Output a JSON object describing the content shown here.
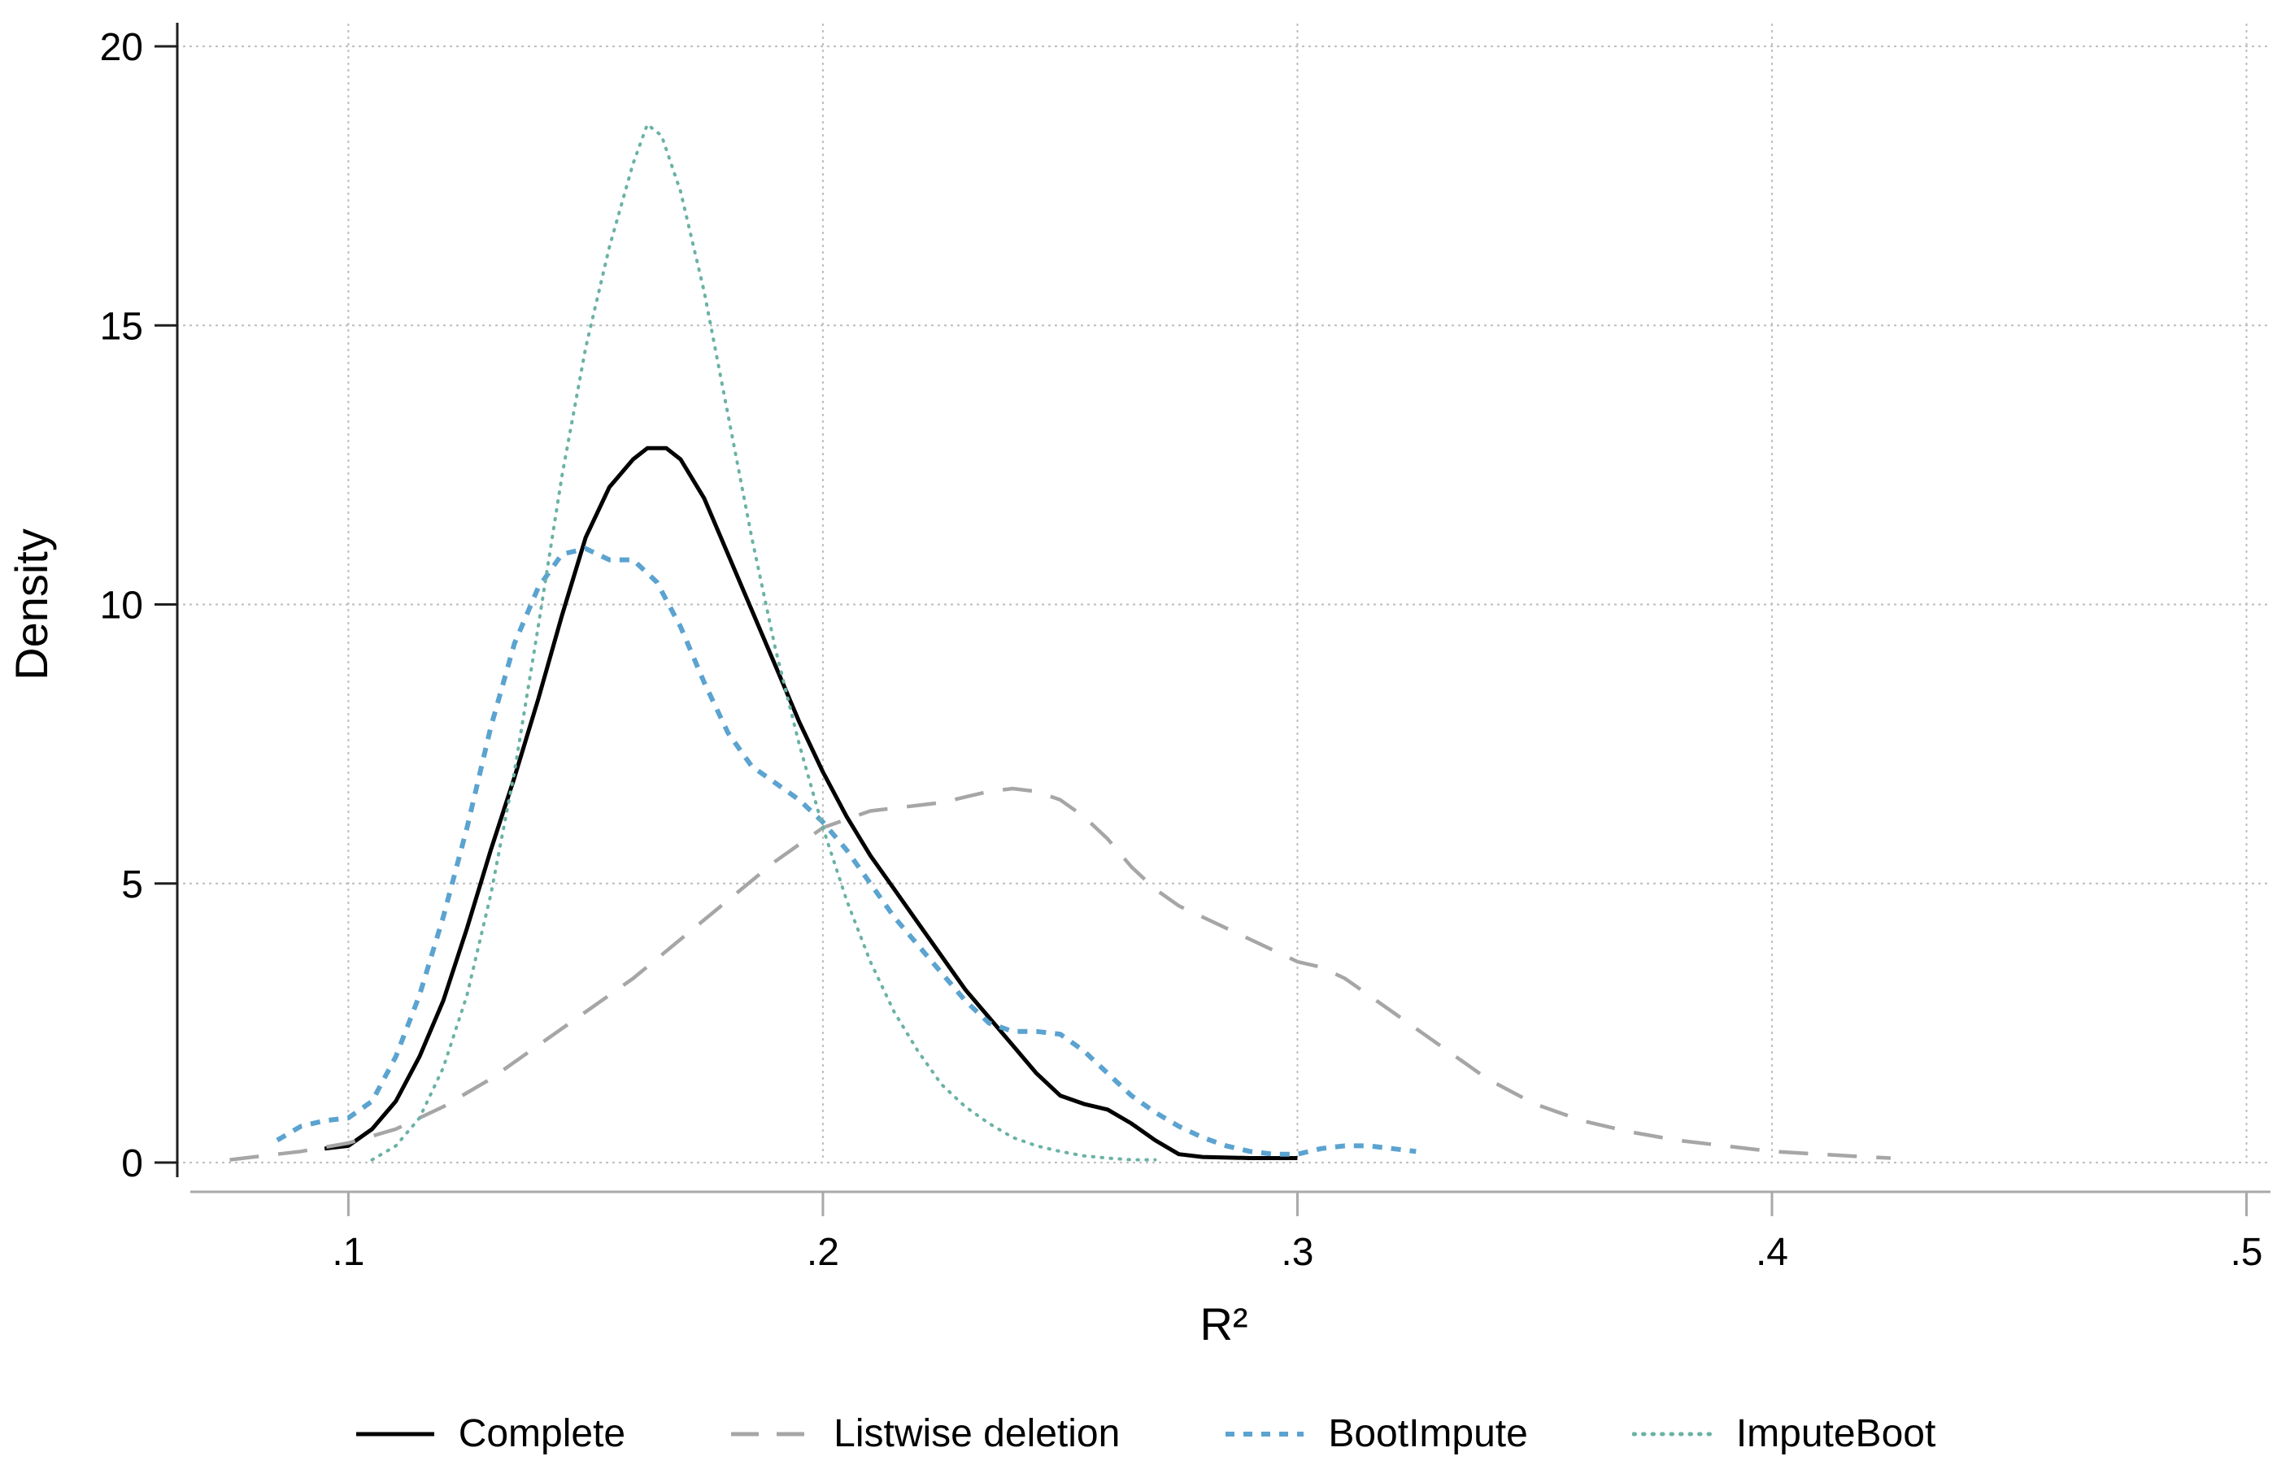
{
  "chart_data": {
    "type": "line",
    "title": "",
    "subtitle": "",
    "xlabel": "R²",
    "ylabel": "Density",
    "xlim": [
      0.066,
      0.503
    ],
    "ylim": [
      0,
      20
    ],
    "grid": "dotted-both",
    "legend_position": "bottom",
    "frame": {
      "background": "#ffffff",
      "grid_color": "#bdbdbd",
      "y_axis_color": "#1f1f1f",
      "x_axis_color": "#a9a9a9",
      "text_color": "#000000"
    },
    "x_ticks": [
      {
        "v": 0.1,
        "label": ".1"
      },
      {
        "v": 0.2,
        "label": ".2"
      },
      {
        "v": 0.3,
        "label": ".3"
      },
      {
        "v": 0.4,
        "label": ".4"
      },
      {
        "v": 0.5,
        "label": ".5"
      }
    ],
    "y_ticks": [
      {
        "v": 0,
        "label": "0"
      },
      {
        "v": 5,
        "label": "5"
      },
      {
        "v": 10,
        "label": "10"
      },
      {
        "v": 15,
        "label": "15"
      },
      {
        "v": 20,
        "label": "20"
      }
    ],
    "series": [
      {
        "name": "Complete",
        "color": "#000000",
        "style": "solid",
        "width": 5,
        "dash": "",
        "legend_dash": "",
        "cap": "butt",
        "points": [
          [
            0.095,
            0.25
          ],
          [
            0.1,
            0.3
          ],
          [
            0.105,
            0.6
          ],
          [
            0.11,
            1.1
          ],
          [
            0.115,
            1.9
          ],
          [
            0.12,
            2.9
          ],
          [
            0.125,
            4.2
          ],
          [
            0.13,
            5.6
          ],
          [
            0.135,
            6.9
          ],
          [
            0.14,
            8.3
          ],
          [
            0.145,
            9.8
          ],
          [
            0.15,
            11.2
          ],
          [
            0.155,
            12.1
          ],
          [
            0.16,
            12.6
          ],
          [
            0.163,
            12.8
          ],
          [
            0.167,
            12.8
          ],
          [
            0.17,
            12.6
          ],
          [
            0.175,
            11.9
          ],
          [
            0.18,
            10.9
          ],
          [
            0.185,
            9.9
          ],
          [
            0.19,
            8.9
          ],
          [
            0.195,
            7.9
          ],
          [
            0.2,
            7.0
          ],
          [
            0.205,
            6.2
          ],
          [
            0.21,
            5.5
          ],
          [
            0.215,
            4.9
          ],
          [
            0.22,
            4.3
          ],
          [
            0.225,
            3.7
          ],
          [
            0.23,
            3.1
          ],
          [
            0.235,
            2.6
          ],
          [
            0.24,
            2.1
          ],
          [
            0.245,
            1.6
          ],
          [
            0.25,
            1.2
          ],
          [
            0.255,
            1.05
          ],
          [
            0.26,
            0.95
          ],
          [
            0.265,
            0.7
          ],
          [
            0.27,
            0.4
          ],
          [
            0.275,
            0.15
          ],
          [
            0.28,
            0.1
          ],
          [
            0.29,
            0.08
          ],
          [
            0.3,
            0.08
          ]
        ]
      },
      {
        "name": "Listwise deletion",
        "color": "#a6a6a6",
        "style": "long-dash",
        "width": 4.5,
        "dash": "36 24",
        "legend_dash": "34 22",
        "cap": "butt",
        "points": [
          [
            0.075,
            0.05
          ],
          [
            0.08,
            0.1
          ],
          [
            0.09,
            0.2
          ],
          [
            0.1,
            0.35
          ],
          [
            0.11,
            0.6
          ],
          [
            0.12,
            1.0
          ],
          [
            0.13,
            1.5
          ],
          [
            0.14,
            2.1
          ],
          [
            0.15,
            2.7
          ],
          [
            0.16,
            3.3
          ],
          [
            0.17,
            4.0
          ],
          [
            0.18,
            4.7
          ],
          [
            0.19,
            5.4
          ],
          [
            0.2,
            6.0
          ],
          [
            0.21,
            6.3
          ],
          [
            0.22,
            6.4
          ],
          [
            0.225,
            6.45
          ],
          [
            0.23,
            6.55
          ],
          [
            0.235,
            6.65
          ],
          [
            0.24,
            6.7
          ],
          [
            0.245,
            6.65
          ],
          [
            0.25,
            6.5
          ],
          [
            0.255,
            6.2
          ],
          [
            0.26,
            5.8
          ],
          [
            0.265,
            5.3
          ],
          [
            0.27,
            4.9
          ],
          [
            0.275,
            4.6
          ],
          [
            0.28,
            4.4
          ],
          [
            0.285,
            4.2
          ],
          [
            0.29,
            4.0
          ],
          [
            0.295,
            3.8
          ],
          [
            0.3,
            3.6
          ],
          [
            0.305,
            3.5
          ],
          [
            0.31,
            3.3
          ],
          [
            0.315,
            3.0
          ],
          [
            0.32,
            2.7
          ],
          [
            0.325,
            2.4
          ],
          [
            0.33,
            2.1
          ],
          [
            0.335,
            1.8
          ],
          [
            0.34,
            1.5
          ],
          [
            0.35,
            1.05
          ],
          [
            0.36,
            0.75
          ],
          [
            0.37,
            0.55
          ],
          [
            0.38,
            0.4
          ],
          [
            0.39,
            0.3
          ],
          [
            0.4,
            0.2
          ],
          [
            0.41,
            0.15
          ],
          [
            0.42,
            0.1
          ],
          [
            0.425,
            0.08
          ]
        ]
      },
      {
        "name": "BootImpute",
        "color": "#5ba3d0",
        "style": "short-dash",
        "width": 6,
        "dash": "12 11",
        "legend_dash": "11 11",
        "cap": "butt",
        "points": [
          [
            0.085,
            0.4
          ],
          [
            0.09,
            0.65
          ],
          [
            0.095,
            0.75
          ],
          [
            0.1,
            0.8
          ],
          [
            0.105,
            1.1
          ],
          [
            0.11,
            1.9
          ],
          [
            0.115,
            3.0
          ],
          [
            0.12,
            4.4
          ],
          [
            0.125,
            6.0
          ],
          [
            0.13,
            7.8
          ],
          [
            0.135,
            9.3
          ],
          [
            0.14,
            10.3
          ],
          [
            0.145,
            10.9
          ],
          [
            0.15,
            11.0
          ],
          [
            0.155,
            10.8
          ],
          [
            0.16,
            10.8
          ],
          [
            0.165,
            10.4
          ],
          [
            0.17,
            9.6
          ],
          [
            0.175,
            8.6
          ],
          [
            0.18,
            7.7
          ],
          [
            0.185,
            7.1
          ],
          [
            0.19,
            6.8
          ],
          [
            0.195,
            6.5
          ],
          [
            0.2,
            6.1
          ],
          [
            0.205,
            5.6
          ],
          [
            0.21,
            5.0
          ],
          [
            0.215,
            4.4
          ],
          [
            0.22,
            3.9
          ],
          [
            0.225,
            3.4
          ],
          [
            0.23,
            2.9
          ],
          [
            0.235,
            2.5
          ],
          [
            0.24,
            2.35
          ],
          [
            0.245,
            2.35
          ],
          [
            0.25,
            2.3
          ],
          [
            0.255,
            2.0
          ],
          [
            0.26,
            1.6
          ],
          [
            0.265,
            1.2
          ],
          [
            0.27,
            0.9
          ],
          [
            0.275,
            0.65
          ],
          [
            0.28,
            0.45
          ],
          [
            0.285,
            0.3
          ],
          [
            0.29,
            0.2
          ],
          [
            0.295,
            0.15
          ],
          [
            0.3,
            0.15
          ],
          [
            0.305,
            0.25
          ],
          [
            0.31,
            0.3
          ],
          [
            0.315,
            0.3
          ],
          [
            0.32,
            0.25
          ],
          [
            0.325,
            0.2
          ]
        ]
      },
      {
        "name": "ImputeBoot",
        "color": "#6ab2a5",
        "style": "dotted",
        "width": 4,
        "dash": "1.5 9.5",
        "legend_dash": "1.5 10",
        "cap": "round",
        "points": [
          [
            0.105,
            0.05
          ],
          [
            0.11,
            0.3
          ],
          [
            0.115,
            0.8
          ],
          [
            0.12,
            1.7
          ],
          [
            0.125,
            3.0
          ],
          [
            0.13,
            4.8
          ],
          [
            0.135,
            7.0
          ],
          [
            0.14,
            9.6
          ],
          [
            0.145,
            12.3
          ],
          [
            0.15,
            14.6
          ],
          [
            0.155,
            16.4
          ],
          [
            0.16,
            17.9
          ],
          [
            0.163,
            18.6
          ],
          [
            0.166,
            18.4
          ],
          [
            0.17,
            17.4
          ],
          [
            0.175,
            15.6
          ],
          [
            0.18,
            13.4
          ],
          [
            0.185,
            11.2
          ],
          [
            0.19,
            9.2
          ],
          [
            0.195,
            7.5
          ],
          [
            0.2,
            6.0
          ],
          [
            0.205,
            4.7
          ],
          [
            0.21,
            3.6
          ],
          [
            0.215,
            2.7
          ],
          [
            0.22,
            2.0
          ],
          [
            0.225,
            1.4
          ],
          [
            0.23,
            1.0
          ],
          [
            0.235,
            0.7
          ],
          [
            0.24,
            0.45
          ],
          [
            0.245,
            0.3
          ],
          [
            0.25,
            0.2
          ],
          [
            0.255,
            0.12
          ],
          [
            0.26,
            0.08
          ],
          [
            0.265,
            0.05
          ],
          [
            0.27,
            0.05
          ]
        ]
      }
    ]
  }
}
